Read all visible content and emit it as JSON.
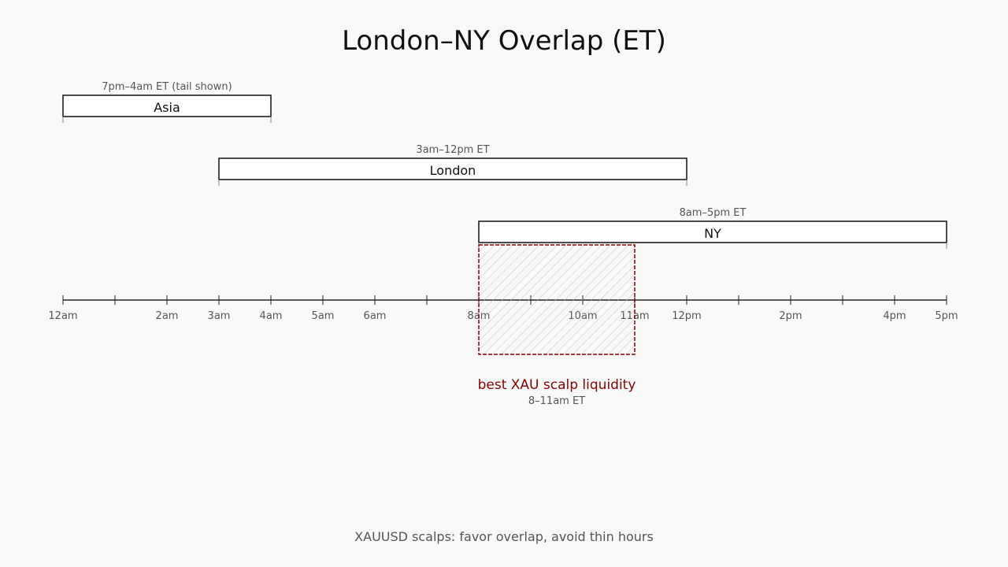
{
  "title": "London–NY Overlap (ET)",
  "axis": {
    "ticks": [
      {
        "hour": 0,
        "label": "12am"
      },
      {
        "hour": 1,
        "label": ""
      },
      {
        "hour": 2,
        "label": "2am"
      },
      {
        "hour": 3,
        "label": "3am"
      },
      {
        "hour": 4,
        "label": "4am"
      },
      {
        "hour": 5,
        "label": "5am"
      },
      {
        "hour": 6,
        "label": "6am"
      },
      {
        "hour": 7,
        "label": ""
      },
      {
        "hour": 8,
        "label": "8am"
      },
      {
        "hour": 9,
        "label": ""
      },
      {
        "hour": 10,
        "label": "10am"
      },
      {
        "hour": 11,
        "label": "11am"
      },
      {
        "hour": 12,
        "label": "12pm"
      },
      {
        "hour": 13,
        "label": ""
      },
      {
        "hour": 14,
        "label": "2pm"
      },
      {
        "hour": 15,
        "label": ""
      },
      {
        "hour": 16,
        "label": "4pm"
      },
      {
        "hour": 17,
        "label": "5pm"
      }
    ]
  },
  "sessions": [
    {
      "name": "Asia",
      "range_label": "7pm–4am ET (tail shown)",
      "start_hour": 0,
      "end_hour": 4
    },
    {
      "name": "London",
      "range_label": "3am–12pm ET",
      "start_hour": 3,
      "end_hour": 12
    },
    {
      "name": "NY",
      "range_label": "8am–5pm ET",
      "start_hour": 8,
      "end_hour": 17
    }
  ],
  "highlight": {
    "label": "best XAU scalp liquidity",
    "sublabel": "8–11am ET",
    "start_hour": 8,
    "end_hour": 11,
    "color": "#8b0000"
  },
  "footer": "XAUUSD scalps: favor overlap, avoid thin hours"
}
